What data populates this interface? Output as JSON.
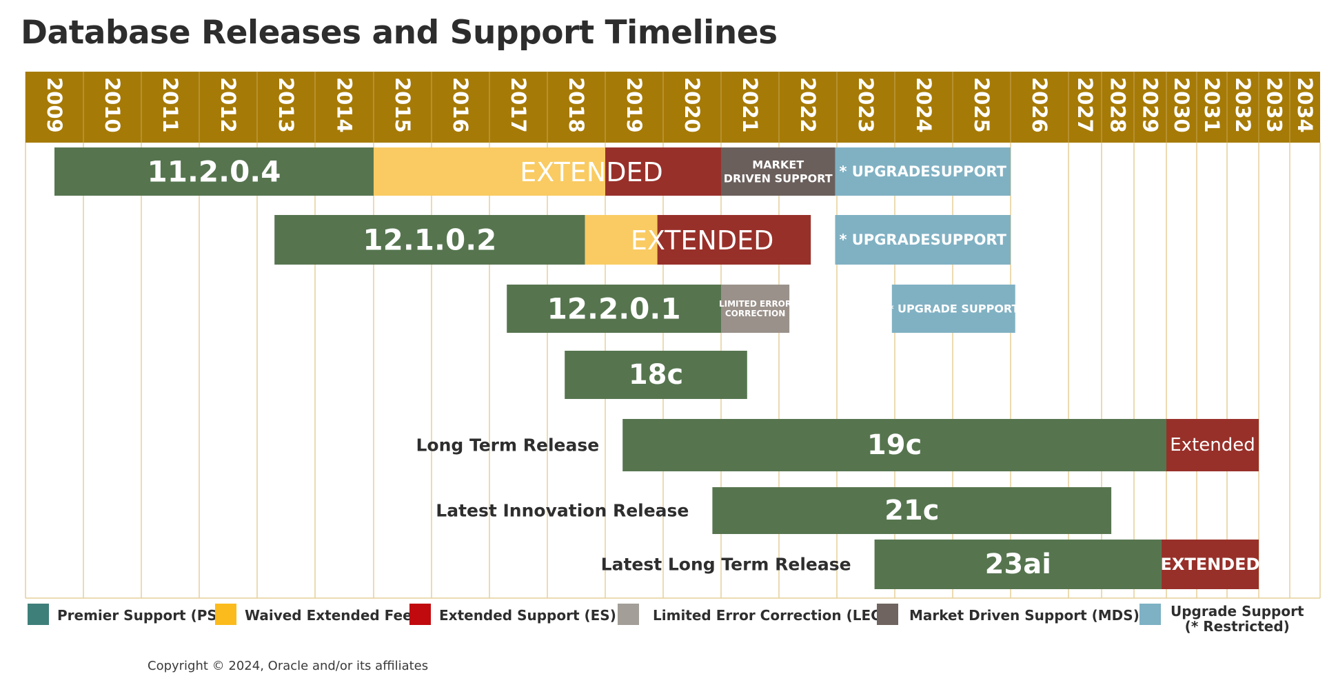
{
  "title": "Database Releases and Support Timelines",
  "copyright": "Copyright © 2024, Oracle and/or its affiliates",
  "legend": [
    {
      "key": "PS",
      "label": "Premier Support (PS)",
      "color": "#3f7f7a"
    },
    {
      "key": "WEF",
      "label": "Waived Extended Fee",
      "color": "#fbbb1c"
    },
    {
      "key": "ES",
      "label": "Extended Support (ES)",
      "color": "#c10a0e"
    },
    {
      "key": "LEC",
      "label": "Limited Error Correction (LEC)",
      "color": "#a39e98"
    },
    {
      "key": "MDS",
      "label": "Market Driven Support (MDS)",
      "color": "#6f6460"
    },
    {
      "key": "US",
      "label_line1": "Upgrade Support",
      "label_line2": "(* Restricted)",
      "color": "#7db1c3"
    }
  ],
  "chart_data": {
    "type": "gantt",
    "x_axis": {
      "years": [
        2009,
        2010,
        2011,
        2012,
        2013,
        2014,
        2015,
        2016,
        2017,
        2018,
        2019,
        2020,
        2021,
        2022,
        2023,
        2024,
        2025,
        2026,
        2027,
        2028,
        2029,
        2030,
        2031,
        2032,
        2033,
        2034
      ],
      "header_color": "#a67a06",
      "gridline_color": "#e5cf98"
    },
    "segment_colors": {
      "PS": "#56754f",
      "WEF": "#f9cb62",
      "ES": "#98302a",
      "LEC": "#9a918a",
      "MDS": "#6a5f5b",
      "US": "#80b1c3"
    },
    "rows": [
      {
        "release": "11.2.0.4",
        "side_label": "",
        "segments": [
          {
            "type": "PS",
            "start": 2009.5,
            "end": 2015.0,
            "label": "11.2.0.4"
          },
          {
            "type": "WEF",
            "start": 2015.0,
            "end": 2019.0,
            "label": ""
          },
          {
            "type": "ES",
            "start": 2019.0,
            "end": 2021.0,
            "label": ""
          },
          {
            "type": "MDS",
            "start": 2021.0,
            "end": 2022.97,
            "label_line1": "MARKET",
            "label_line2": "DRIVEN SUPPORT"
          },
          {
            "type": "US",
            "start": 2022.97,
            "end": 2026.0,
            "label": "* UPGRADESUPPORT"
          }
        ],
        "overlay_label": "EXTENDED"
      },
      {
        "release": "12.1.0.2",
        "side_label": "",
        "segments": [
          {
            "type": "PS",
            "start": 2013.3,
            "end": 2018.65,
            "label": "12.1.0.2"
          },
          {
            "type": "WEF",
            "start": 2018.65,
            "end": 2019.9,
            "label": ""
          },
          {
            "type": "ES",
            "start": 2019.9,
            "end": 2022.55,
            "label": ""
          },
          {
            "type": "US",
            "start": 2022.97,
            "end": 2026.0,
            "label": "* UPGRADESUPPORT"
          }
        ],
        "overlay_label": "EXTENDED"
      },
      {
        "release": "12.2.0.1",
        "side_label": "",
        "segments": [
          {
            "type": "PS",
            "start": 2017.3,
            "end": 2021.0,
            "label": "12.2.0.1"
          },
          {
            "type": "LEC",
            "start": 2021.0,
            "end": 2022.18,
            "label_line1": "LIMITED ERROR",
            "label_line2": "CORRECTION"
          },
          {
            "type": "US",
            "start": 2023.95,
            "end": 2026.08,
            "label": "* UPGRADE SUPPORT"
          }
        ]
      },
      {
        "release": "18c",
        "side_label": "",
        "segments": [
          {
            "type": "PS",
            "start": 2018.3,
            "end": 2021.45,
            "label": "18c"
          }
        ]
      },
      {
        "release": "19c",
        "side_label": "Long Term Release",
        "segments": [
          {
            "type": "PS",
            "start": 2019.3,
            "end": 2030.0,
            "label": "19c"
          },
          {
            "type": "ES",
            "start": 2030.0,
            "end": 2033.0,
            "label": "Extended"
          }
        ]
      },
      {
        "release": "21c",
        "side_label": "Latest Innovation Release",
        "segments": [
          {
            "type": "PS",
            "start": 2020.85,
            "end": 2028.3,
            "label": "21c"
          }
        ]
      },
      {
        "release": "23ai",
        "side_label": "Latest Long Term Release",
        "segments": [
          {
            "type": "PS",
            "start": 2023.65,
            "end": 2029.85,
            "label": "23ai"
          },
          {
            "type": "ES",
            "start": 2029.85,
            "end": 2033.0,
            "label": "EXTENDED"
          }
        ]
      }
    ]
  }
}
